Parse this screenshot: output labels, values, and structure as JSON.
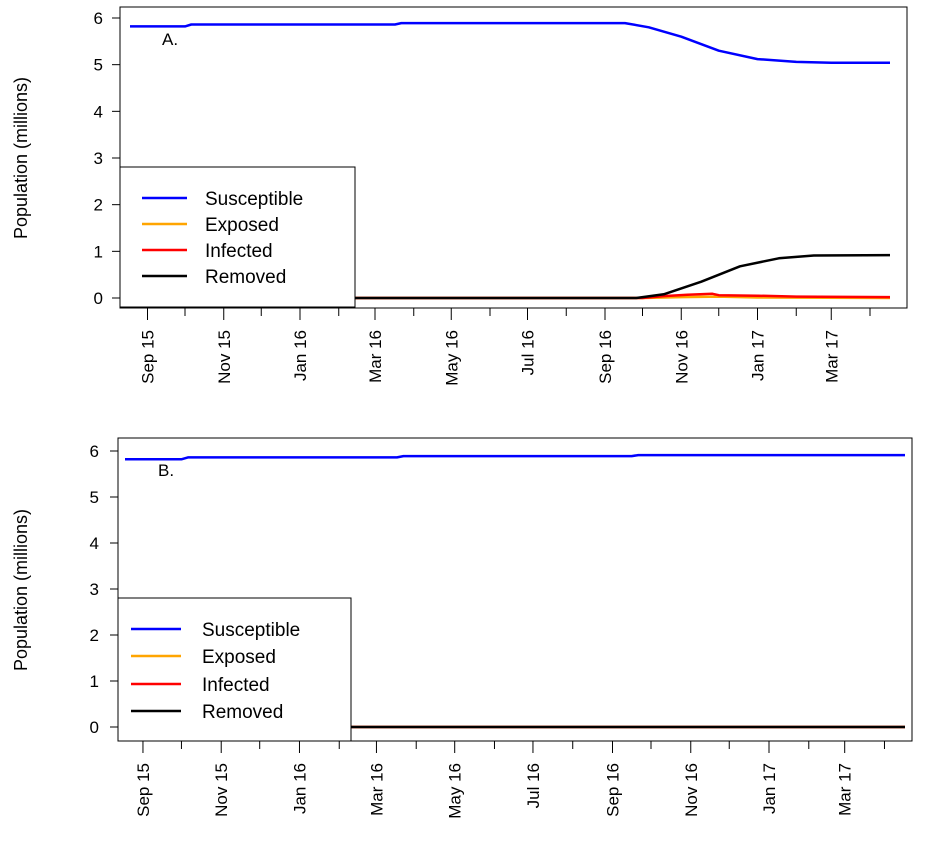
{
  "colors": {
    "susceptible": "#0000ff",
    "exposed": "#ffa500",
    "infected": "#ff0000",
    "removed": "#000000"
  },
  "chart_data": [
    {
      "type": "line",
      "panel_label": "A.",
      "ylabel": "Population (millions)",
      "xlabel": "",
      "x_ticks": [
        "Sep 15",
        "Nov 15",
        "Jan 16",
        "Mar 16",
        "May 16",
        "Jul 16",
        "Sep 16",
        "Nov 16",
        "Jan 17",
        "Mar 17"
      ],
      "y_ticks": [
        "0",
        "1",
        "2",
        "3",
        "4",
        "5",
        "6"
      ],
      "ylim": [
        0,
        6
      ],
      "xlim": [
        "2015-09-01",
        "2017-05-01"
      ],
      "legend": {
        "position": "bottom-left",
        "entries": [
          "Susceptible",
          "Exposed",
          "Infected",
          "Removed"
        ]
      },
      "series": [
        {
          "name": "Susceptible",
          "color": "#0000ff",
          "points": [
            [
              "2015-09-01",
              5.82
            ],
            [
              "2015-10-15",
              5.82
            ],
            [
              "2015-10-20",
              5.86
            ],
            [
              "2016-03-31",
              5.86
            ],
            [
              "2016-04-05",
              5.89
            ],
            [
              "2016-10-01",
              5.89
            ],
            [
              "2016-10-20",
              5.8
            ],
            [
              "2016-11-15",
              5.6
            ],
            [
              "2016-12-15",
              5.3
            ],
            [
              "2017-01-15",
              5.12
            ],
            [
              "2017-02-15",
              5.06
            ],
            [
              "2017-03-15",
              5.04
            ],
            [
              "2017-05-01",
              5.04
            ]
          ]
        },
        {
          "name": "Exposed",
          "color": "#ffa500",
          "points": [
            [
              "2015-09-01",
              0.0
            ],
            [
              "2016-10-15",
              0.0
            ],
            [
              "2016-11-15",
              0.02
            ],
            [
              "2016-12-15",
              0.03
            ],
            [
              "2017-01-15",
              0.01
            ],
            [
              "2017-05-01",
              0.0
            ]
          ]
        },
        {
          "name": "Infected",
          "color": "#ff0000",
          "points": [
            [
              "2015-09-01",
              0.0
            ],
            [
              "2016-10-15",
              0.0
            ],
            [
              "2016-11-01",
              0.04
            ],
            [
              "2016-11-20",
              0.07
            ],
            [
              "2016-12-10",
              0.09
            ],
            [
              "2016-12-15",
              0.06
            ],
            [
              "2017-01-15",
              0.05
            ],
            [
              "2017-02-15",
              0.03
            ],
            [
              "2017-05-01",
              0.02
            ]
          ]
        },
        {
          "name": "Removed",
          "color": "#000000",
          "points": [
            [
              "2015-09-01",
              0.0
            ],
            [
              "2016-10-10",
              0.0
            ],
            [
              "2016-11-01",
              0.08
            ],
            [
              "2016-12-01",
              0.35
            ],
            [
              "2017-01-01",
              0.68
            ],
            [
              "2017-02-01",
              0.85
            ],
            [
              "2017-03-01",
              0.91
            ],
            [
              "2017-05-01",
              0.92
            ]
          ]
        }
      ]
    },
    {
      "type": "line",
      "panel_label": "B.",
      "ylabel": "Population (millions)",
      "xlabel": "",
      "x_ticks": [
        "Sep 15",
        "Nov 15",
        "Jan 16",
        "Mar 16",
        "May 16",
        "Jul 16",
        "Sep 16",
        "Nov 16",
        "Jan 17",
        "Mar 17"
      ],
      "y_ticks": [
        "0",
        "1",
        "2",
        "3",
        "4",
        "5",
        "6"
      ],
      "ylim": [
        0,
        6
      ],
      "xlim": [
        "2015-09-01",
        "2017-05-01"
      ],
      "legend": {
        "position": "bottom-left",
        "entries": [
          "Susceptible",
          "Exposed",
          "Infected",
          "Removed"
        ]
      },
      "series": [
        {
          "name": "Susceptible",
          "color": "#0000ff",
          "points": [
            [
              "2015-09-01",
              5.82
            ],
            [
              "2015-10-15",
              5.82
            ],
            [
              "2015-10-20",
              5.86
            ],
            [
              "2016-03-31",
              5.86
            ],
            [
              "2016-04-05",
              5.89
            ],
            [
              "2016-09-30",
              5.89
            ],
            [
              "2016-10-05",
              5.91
            ],
            [
              "2017-05-01",
              5.91
            ]
          ]
        },
        {
          "name": "Exposed",
          "color": "#ffa500",
          "points": [
            [
              "2015-09-01",
              0.0
            ],
            [
              "2017-05-01",
              0.0
            ]
          ]
        },
        {
          "name": "Infected",
          "color": "#ff0000",
          "points": [
            [
              "2015-09-01",
              0.0
            ],
            [
              "2017-05-01",
              0.0
            ]
          ]
        },
        {
          "name": "Removed",
          "color": "#000000",
          "points": [
            [
              "2015-09-01",
              0.0
            ],
            [
              "2017-05-01",
              0.0
            ]
          ]
        }
      ]
    }
  ]
}
